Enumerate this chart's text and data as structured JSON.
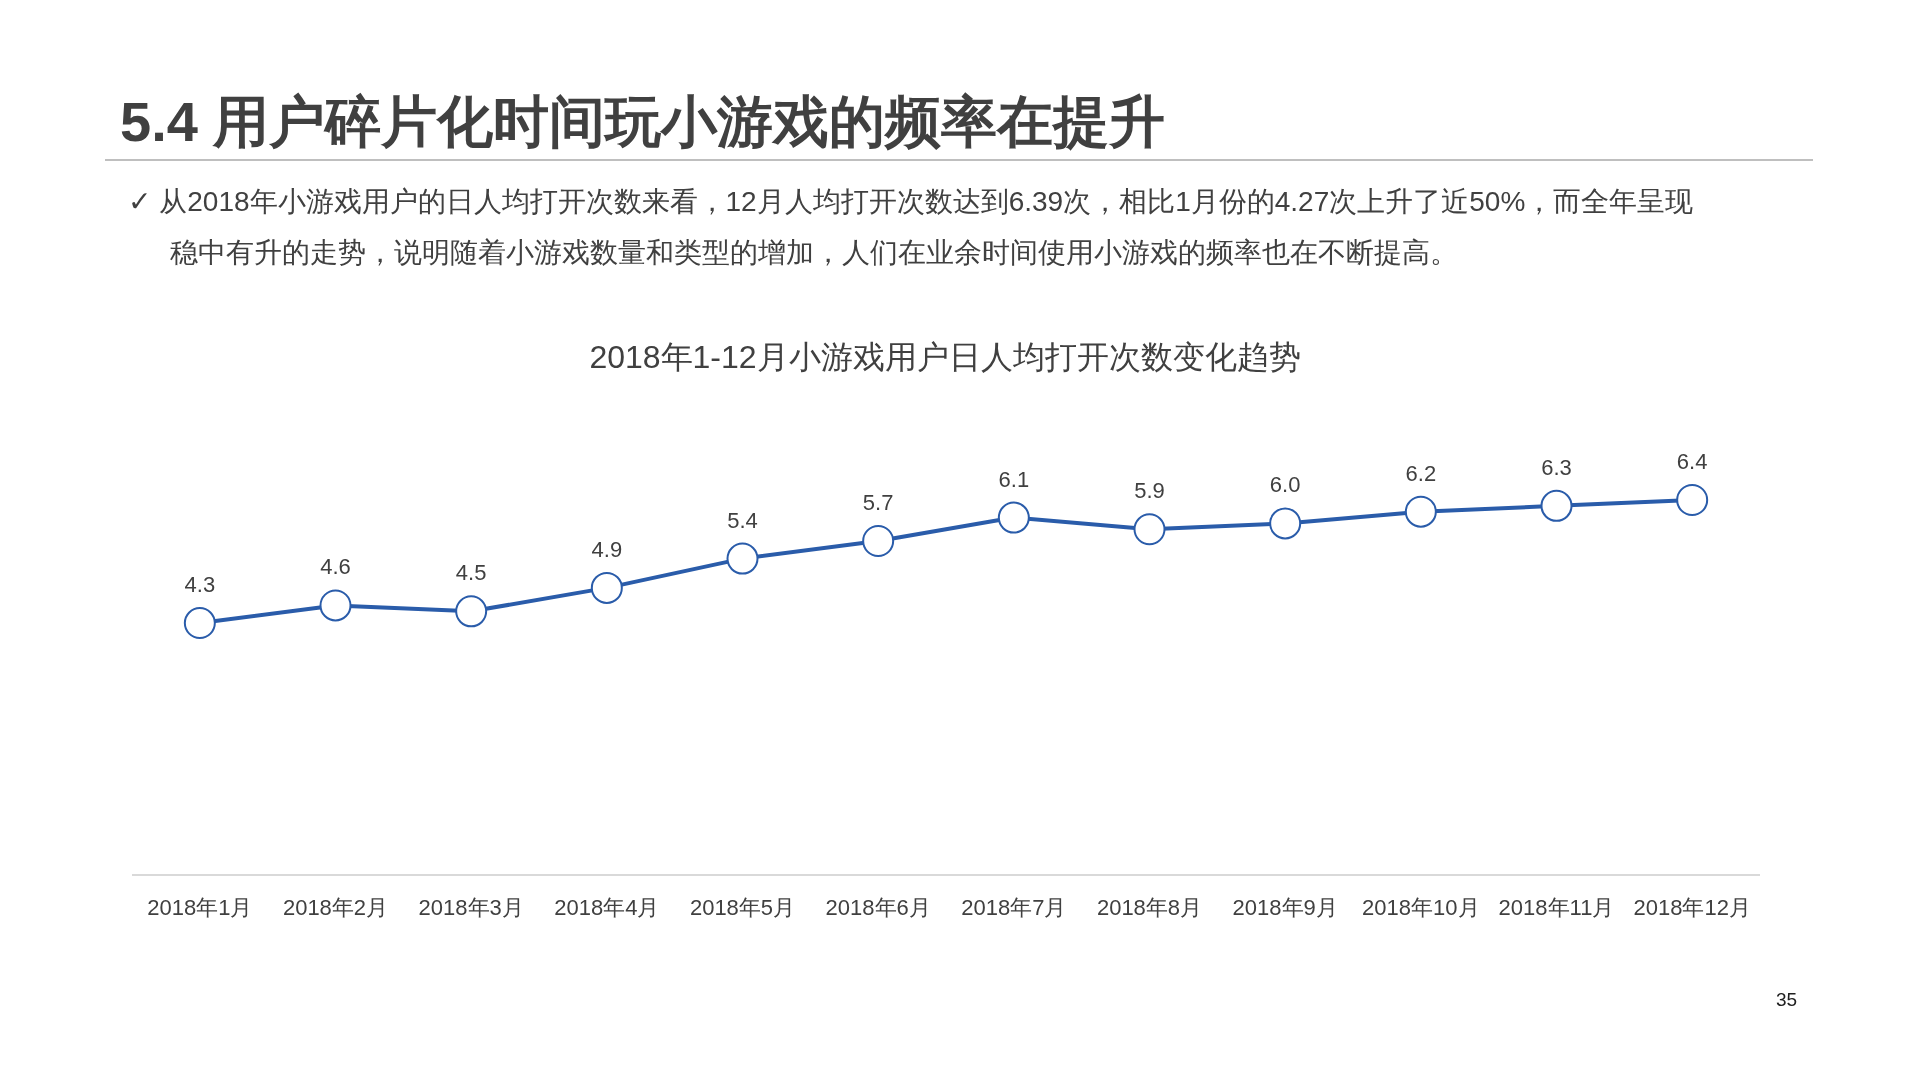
{
  "chart_data": {
    "type": "line",
    "title": "5.4 用户碎片化时间玩小游戏的频率在提升",
    "subtitle": "2018年1-12月小游戏用户日人均打开次数变化趋势",
    "annotations": [
      "✓ 从2018年小游戏用户的日人均打开次数来看，12月人均打开次数达到6.39次，相比1月份的4.27次上升了近50%，而全年呈现稳中有升的走势，说明随着小游戏数量和类型的增加，人们在业余时间使用小游戏的频率也在不断提高。",
      "35"
    ],
    "categories": [
      "2018年1月",
      "2018年2月",
      "2018年3月",
      "2018年4月",
      "2018年5月",
      "2018年6月",
      "2018年7月",
      "2018年8月",
      "2018年9月",
      "2018年10月",
      "2018年11月",
      "2018年12月"
    ],
    "series": [
      {
        "color": "#2a5caa",
        "values": [
          4.3,
          4.6,
          4.5,
          4.9,
          5.4,
          5.7,
          6.1,
          5.9,
          6.0,
          6.2,
          6.3,
          6.4
        ],
        "value_labels": [
          "4.3",
          "4.6",
          "4.5",
          "4.9",
          "5.4",
          "5.7",
          "6.1",
          "5.9",
          "6.0",
          "6.2",
          "6.3",
          "6.4"
        ]
      }
    ],
    "tick_labels": "x",
    "marker": "circle",
    "line_style": "solid"
  }
}
